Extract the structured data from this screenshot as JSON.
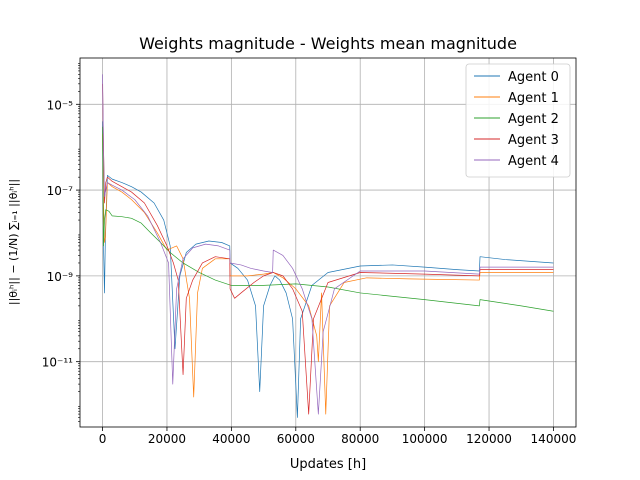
{
  "chart_data": {
    "type": "line",
    "title": "Weights magnitude - Weights mean magnitude",
    "xlabel": "Updates [h]",
    "ylabel": "||θᵢʰ|| − (1/N) ∑ᵢ₌₁ ||θᵢʰ||",
    "xscale": "linear",
    "yscale": "log",
    "xlim": [
      -7000,
      147000
    ],
    "ylim": [
      3e-13,
      0.00012
    ],
    "x_ticks": [
      0,
      20000,
      40000,
      60000,
      80000,
      100000,
      120000,
      140000
    ],
    "x_tick_labels": [
      "0",
      "20000",
      "40000",
      "60000",
      "80000",
      "100000",
      "120000",
      "140000"
    ],
    "y_ticks": [
      1e-11,
      1e-09,
      1e-07,
      1e-05
    ],
    "y_tick_labels": [
      "10⁻¹¹",
      "10⁻⁹",
      "10⁻⁷",
      "10⁻⁵"
    ],
    "grid": true,
    "legend_position": "top-right",
    "series": [
      {
        "name": "Agent 0",
        "color": "#1f77b4",
        "points": [
          [
            0,
            4e-06
          ],
          [
            300,
            5e-09
          ],
          [
            600,
            4e-10
          ],
          [
            900,
            1e-08
          ],
          [
            1500,
            2.2e-07
          ],
          [
            3000,
            1.8e-07
          ],
          [
            6000,
            1.5e-07
          ],
          [
            9000,
            1.2e-07
          ],
          [
            12000,
            9e-08
          ],
          [
            16000,
            5e-08
          ],
          [
            19000,
            2e-08
          ],
          [
            21000,
            5e-09
          ],
          [
            22500,
            2e-11
          ],
          [
            24000,
            1e-09
          ],
          [
            26000,
            3.5e-09
          ],
          [
            29000,
            5.5e-09
          ],
          [
            33000,
            6.5e-09
          ],
          [
            37000,
            6e-09
          ],
          [
            39500,
            5e-09
          ],
          [
            39600,
            2e-09
          ],
          [
            42000,
            1.5e-09
          ],
          [
            45000,
            8e-10
          ],
          [
            47500,
            2e-10
          ],
          [
            48800,
            2e-12
          ],
          [
            50000,
            2e-10
          ],
          [
            52000,
            6e-10
          ],
          [
            53500,
            1e-09
          ],
          [
            55000,
            8e-10
          ],
          [
            57000,
            4e-10
          ],
          [
            59000,
            1e-10
          ],
          [
            60500,
            5e-13
          ],
          [
            61500,
            1e-10
          ],
          [
            65000,
            6e-10
          ],
          [
            70000,
            1.2e-09
          ],
          [
            80000,
            1.7e-09
          ],
          [
            90000,
            1.8e-09
          ],
          [
            100000,
            1.6e-09
          ],
          [
            110000,
            1.4e-09
          ],
          [
            117000,
            1.3e-09
          ],
          [
            117200,
            2.8e-09
          ],
          [
            125000,
            2.4e-09
          ],
          [
            140000,
            2e-09
          ]
        ]
      },
      {
        "name": "Agent 1",
        "color": "#ff7f0e",
        "points": [
          [
            0,
            2e-06
          ],
          [
            300,
            5e-08
          ],
          [
            600,
            6e-09
          ],
          [
            900,
            8e-09
          ],
          [
            1500,
            1.5e-07
          ],
          [
            3000,
            1.2e-07
          ],
          [
            6000,
            9e-08
          ],
          [
            9000,
            6e-08
          ],
          [
            13000,
            3e-08
          ],
          [
            17000,
            1e-08
          ],
          [
            20000,
            4e-09
          ],
          [
            23000,
            5e-09
          ],
          [
            25000,
            2.5e-09
          ],
          [
            27000,
            3e-10
          ],
          [
            28300,
            1.5e-12
          ],
          [
            29500,
            4e-10
          ],
          [
            31000,
            1.5e-09
          ],
          [
            35000,
            2.5e-09
          ],
          [
            39500,
            2.5e-09
          ],
          [
            39600,
            1e-09
          ],
          [
            45000,
            1e-09
          ],
          [
            50000,
            1.1e-09
          ],
          [
            53000,
            1.2e-09
          ],
          [
            56000,
            9e-10
          ],
          [
            60000,
            5e-10
          ],
          [
            64000,
            2e-10
          ],
          [
            66500,
            4e-11
          ],
          [
            67000,
            1e-11
          ],
          [
            68000,
            4e-10
          ],
          [
            69300,
            6e-13
          ],
          [
            70500,
            2e-10
          ],
          [
            75000,
            7e-10
          ],
          [
            82000,
            9e-10
          ],
          [
            95000,
            8.5e-10
          ],
          [
            117000,
            8e-10
          ],
          [
            117200,
            1.2e-09
          ],
          [
            140000,
            1.2e-09
          ]
        ]
      },
      {
        "name": "Agent 2",
        "color": "#2ca02c",
        "points": [
          [
            0,
            3e-06
          ],
          [
            300,
            5e-09
          ],
          [
            600,
            2e-08
          ],
          [
            1000,
            3.5e-08
          ],
          [
            2000,
            3.2e-08
          ],
          [
            3000,
            2.5e-08
          ],
          [
            6000,
            2.4e-08
          ],
          [
            9000,
            2.2e-08
          ],
          [
            12000,
            1.7e-08
          ],
          [
            15000,
            1e-08
          ],
          [
            18000,
            6e-09
          ],
          [
            21000,
            3.5e-09
          ],
          [
            25000,
            2e-09
          ],
          [
            30000,
            1.2e-09
          ],
          [
            35000,
            8e-10
          ],
          [
            40000,
            6e-10
          ],
          [
            50000,
            6e-10
          ],
          [
            60000,
            6.5e-10
          ],
          [
            70000,
            5.5e-10
          ],
          [
            80000,
            4e-10
          ],
          [
            100000,
            2.8e-10
          ],
          [
            117000,
            2e-10
          ],
          [
            117200,
            2.8e-10
          ],
          [
            130000,
            2e-10
          ],
          [
            140000,
            1.5e-10
          ]
        ]
      },
      {
        "name": "Agent 3",
        "color": "#d62728",
        "points": [
          [
            0,
            3e-05
          ],
          [
            300,
            1e-06
          ],
          [
            600,
            5e-08
          ],
          [
            1000,
            1.5e-07
          ],
          [
            1500,
            2e-07
          ],
          [
            3000,
            1.6e-07
          ],
          [
            6000,
            1.2e-07
          ],
          [
            9000,
            9e-08
          ],
          [
            13000,
            5e-08
          ],
          [
            17000,
            1.5e-08
          ],
          [
            20000,
            5e-09
          ],
          [
            22000,
            2e-09
          ],
          [
            23500,
            8e-10
          ],
          [
            25000,
            5e-12
          ],
          [
            26000,
            3e-10
          ],
          [
            28000,
            8e-10
          ],
          [
            31000,
            2e-09
          ],
          [
            35000,
            2.8e-09
          ],
          [
            39500,
            2.5e-09
          ],
          [
            39600,
            5e-10
          ],
          [
            41000,
            3e-10
          ],
          [
            43000,
            4e-10
          ],
          [
            47000,
            7e-10
          ],
          [
            50000,
            1e-09
          ],
          [
            53000,
            1.2e-09
          ],
          [
            56000,
            1e-09
          ],
          [
            59000,
            5e-10
          ],
          [
            62000,
            1.5e-10
          ],
          [
            64000,
            6e-13
          ],
          [
            65500,
            1e-10
          ],
          [
            70000,
            7e-10
          ],
          [
            80000,
            1.2e-09
          ],
          [
            100000,
            1.1e-09
          ],
          [
            117000,
            1e-09
          ],
          [
            117200,
            1.4e-09
          ],
          [
            140000,
            1.4e-09
          ]
        ]
      },
      {
        "name": "Agent 4",
        "color": "#9467bd",
        "points": [
          [
            0,
            5e-05
          ],
          [
            300,
            1e-06
          ],
          [
            600,
            7e-08
          ],
          [
            1000,
            1e-07
          ],
          [
            1500,
            1.5e-07
          ],
          [
            3000,
            1.3e-07
          ],
          [
            6000,
            1e-07
          ],
          [
            10000,
            6e-08
          ],
          [
            14000,
            2.5e-08
          ],
          [
            18000,
            6e-09
          ],
          [
            20500,
            2e-09
          ],
          [
            21800,
            3e-12
          ],
          [
            23000,
            5e-10
          ],
          [
            25000,
            2.5e-09
          ],
          [
            28000,
            4.5e-09
          ],
          [
            32000,
            5.5e-09
          ],
          [
            36000,
            5e-09
          ],
          [
            39500,
            4e-09
          ],
          [
            39600,
            2e-09
          ],
          [
            43000,
            1.8e-09
          ],
          [
            46000,
            1.5e-09
          ],
          [
            50000,
            1.3e-09
          ],
          [
            52800,
            1.2e-09
          ],
          [
            53000,
            4e-09
          ],
          [
            56000,
            3e-09
          ],
          [
            59000,
            1.5e-09
          ],
          [
            62000,
            5e-10
          ],
          [
            65000,
            1e-10
          ],
          [
            67000,
            6e-13
          ],
          [
            68500,
            5e-11
          ],
          [
            72000,
            5e-10
          ],
          [
            80000,
            1.3e-09
          ],
          [
            100000,
            1.3e-09
          ],
          [
            117000,
            1.1e-09
          ],
          [
            117200,
            1.6e-09
          ],
          [
            140000,
            1.6e-09
          ]
        ]
      }
    ]
  }
}
